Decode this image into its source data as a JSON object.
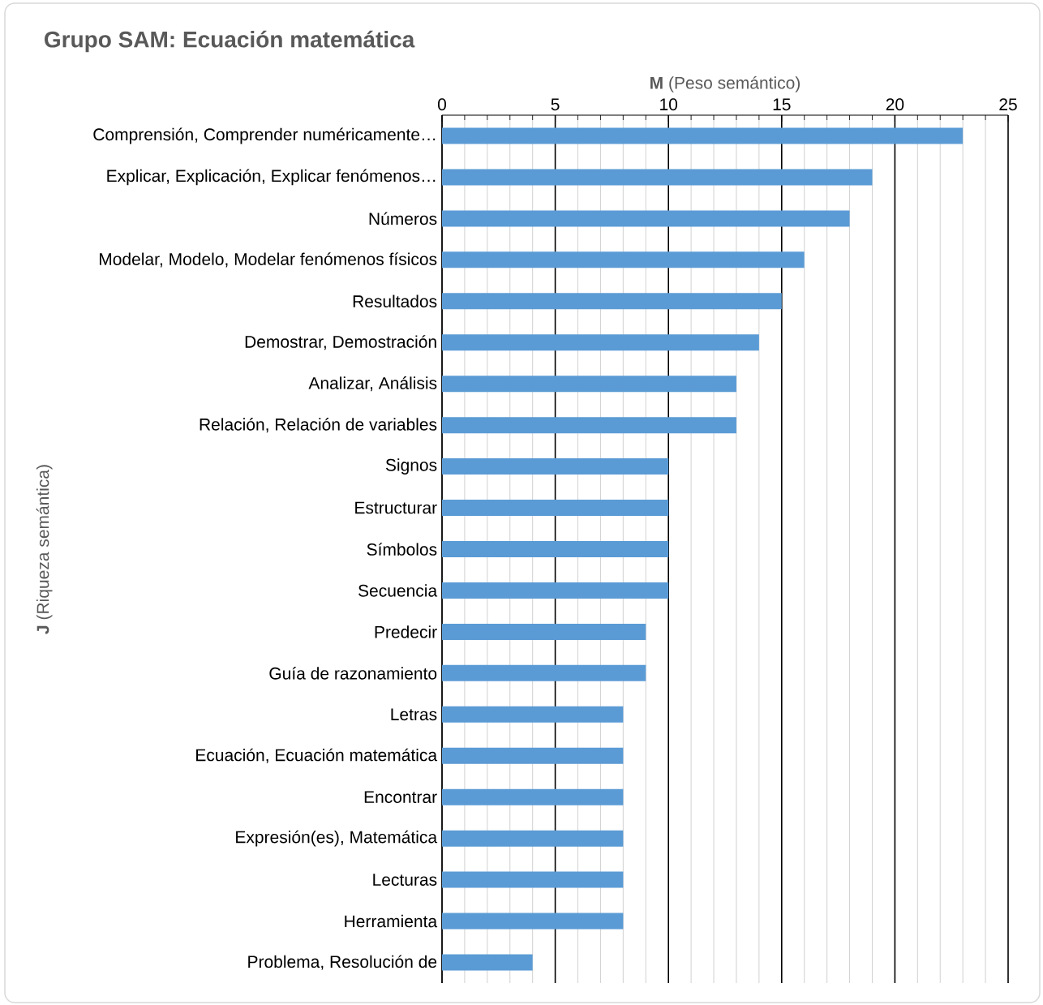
{
  "chart_data": {
    "type": "bar",
    "orientation": "horizontal",
    "title": "Grupo SAM: Ecuación matemática",
    "xlabel": "**M** (Peso semántico)",
    "ylabel": "**J** (Riqueza semántica)",
    "color": "#5b9bd5",
    "grid": "x",
    "categories": [
      "Comprensión, Comprender numéricamente…",
      "Explicar, Explicación, Explicar fenómenos…",
      "Números",
      "Modelar, Modelo, Modelar fenómenos físicos",
      "Resultados",
      "Demostrar, Demostración",
      "Analizar, Análisis",
      "Relación, Relación de variables",
      "Signos",
      "Estructurar",
      "Símbolos",
      "Secuencia",
      "Predecir",
      "Guía de razonamiento",
      "Letras",
      "Ecuación, Ecuación matemática",
      "Encontrar",
      "Expresión(es), Matemática",
      "Lecturas",
      "Herramienta",
      "Problema, Resolución de"
    ],
    "values": [
      23,
      19,
      18,
      16,
      15,
      14,
      13,
      13,
      10,
      10,
      10,
      10,
      9,
      9,
      8,
      8,
      8,
      8,
      8,
      8,
      4
    ],
    "xlim": [
      0,
      25
    ],
    "xticks": [
      0,
      {
        "value": 1,
        "label": null
      },
      {
        "value": 2,
        "label": null
      },
      {
        "value": 3,
        "label": null
      },
      {
        "value": 4,
        "label": null
      },
      5,
      {
        "value": 6,
        "label": null
      },
      {
        "value": 7,
        "label": null
      },
      {
        "value": 8,
        "label": null
      },
      {
        "value": 9,
        "label": null
      },
      10,
      {
        "value": 11,
        "label": null
      },
      {
        "value": 12,
        "label": null
      },
      {
        "value": 13,
        "label": null
      },
      {
        "value": 14,
        "label": null
      },
      15,
      {
        "value": 16,
        "label": null
      },
      {
        "value": 17,
        "label": null
      },
      {
        "value": 18,
        "label": null
      },
      {
        "value": 19,
        "label": null
      },
      20,
      {
        "value": 21,
        "label": null
      },
      {
        "value": 22,
        "label": null
      },
      {
        "value": 23,
        "label": null
      },
      {
        "value": 24,
        "label": null
      },
      25
    ]
  }
}
